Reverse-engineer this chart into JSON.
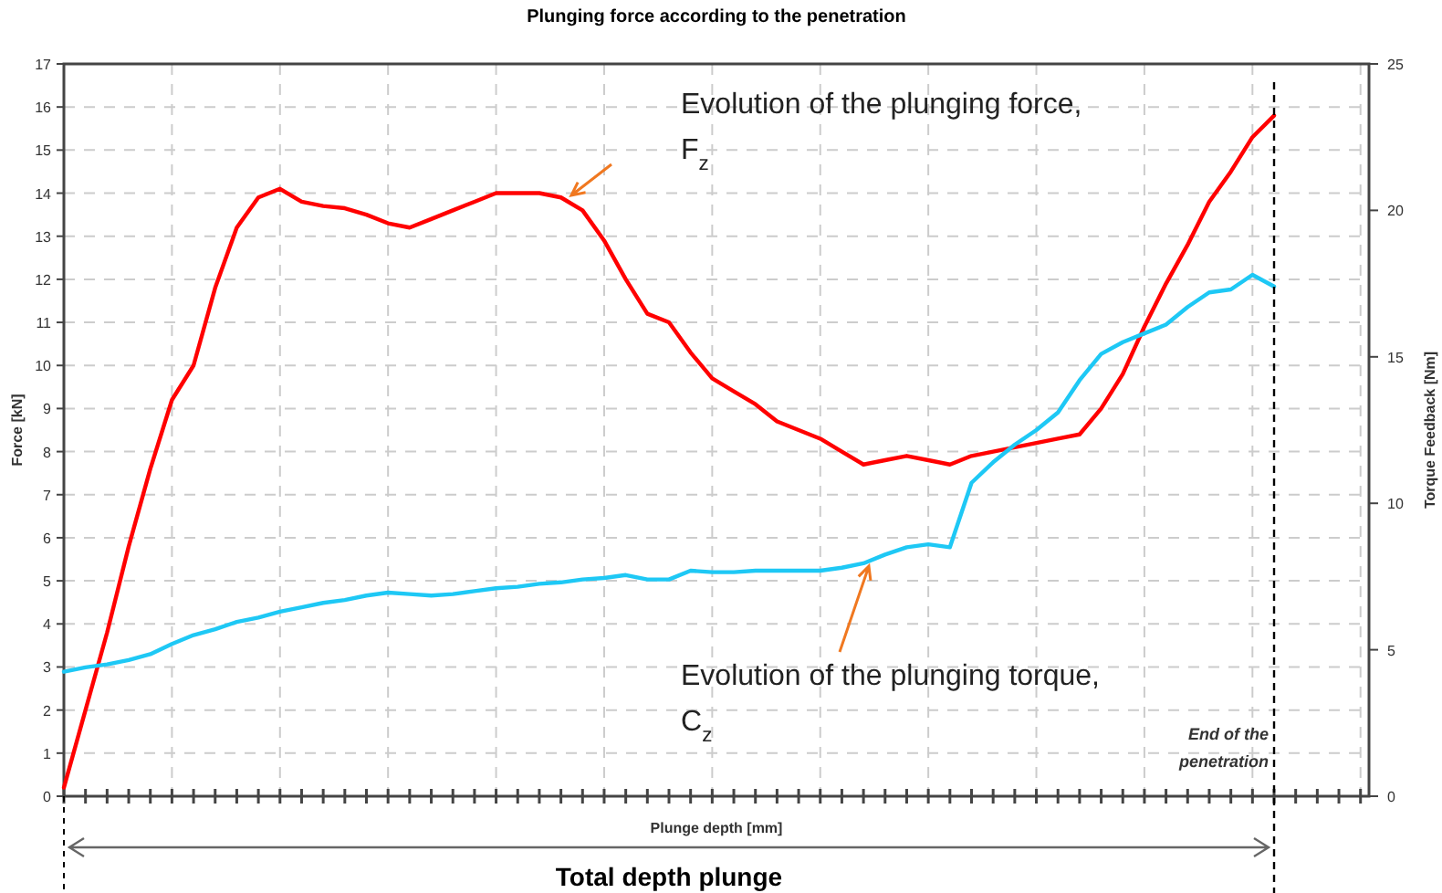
{
  "chart_data": {
    "type": "line",
    "title": "Plunging force according to the penetration",
    "xlabel": "Plunge depth [mm]",
    "ylabel": "Force [kN]",
    "y2label": "Torque Feedback [Nm]",
    "categories": [
      null,
      null,
      null,
      null,
      null,
      null,
      null,
      null,
      null,
      null,
      null,
      null,
      null,
      null,
      null,
      null,
      null,
      null,
      null,
      null,
      null,
      null,
      null,
      null,
      null,
      null,
      null,
      null,
      null,
      null,
      null,
      null,
      null,
      null,
      null,
      null,
      null,
      null,
      null,
      null,
      null,
      null,
      null,
      null,
      null,
      null,
      null,
      null,
      null,
      null,
      null,
      null,
      null,
      null,
      null,
      null,
      null
    ],
    "ylim": [
      0,
      17
    ],
    "yticks": [
      0,
      1,
      2,
      3,
      4,
      5,
      6,
      7,
      8,
      9,
      10,
      11,
      12,
      13,
      14,
      15,
      16,
      17
    ],
    "y2lim": [
      0,
      25
    ],
    "y2ticks": [
      0,
      5,
      10,
      15,
      20,
      25
    ],
    "grid": true,
    "line_style": "solid",
    "series": [
      {
        "color": "#ff0000",
        "values": [
          0.2,
          2.0,
          3.8,
          5.8,
          7.6,
          9.2,
          10.0,
          11.8,
          13.2,
          13.9,
          14.1,
          13.8,
          13.7,
          13.65,
          13.5,
          13.3,
          13.2,
          13.4,
          13.6,
          13.8,
          14.0,
          14.0,
          14.0,
          13.9,
          13.6,
          12.9,
          12.0,
          11.2,
          11.0,
          10.3,
          9.7,
          9.4,
          9.1,
          8.7,
          8.5,
          8.3,
          8.0,
          7.7,
          7.8,
          7.9,
          7.8,
          7.7,
          7.9,
          8.0,
          8.1,
          8.2,
          8.3,
          8.4,
          9.0,
          9.8,
          10.9,
          11.9,
          12.8,
          13.8,
          14.5,
          15.3,
          15.8
        ]
      },
      {
        "color": "#1ec8f5",
        "axis": "y2",
        "values": [
          4.25,
          4.4,
          4.5,
          4.65,
          4.85,
          5.2,
          5.5,
          5.7,
          5.95,
          6.1,
          6.3,
          6.45,
          6.6,
          6.7,
          6.85,
          6.95,
          6.9,
          6.85,
          6.9,
          7.0,
          7.1,
          7.15,
          7.25,
          7.3,
          7.4,
          7.45,
          7.55,
          7.4,
          7.4,
          7.7,
          7.65,
          7.65,
          7.7,
          7.7,
          7.7,
          7.7,
          7.8,
          7.95,
          8.25,
          8.5,
          8.6,
          8.5,
          10.7,
          11.4,
          12.0,
          12.5,
          13.1,
          14.2,
          15.1,
          15.5,
          15.8,
          16.1,
          16.7,
          17.2,
          17.3,
          17.8,
          17.4
        ]
      }
    ],
    "annotations": [
      "Evolution of the plunging force, F$_{z}$",
      "Evolution of the plunging torque, C$_{z}$",
      "End of the penetration",
      "Total depth plunge"
    ]
  }
}
